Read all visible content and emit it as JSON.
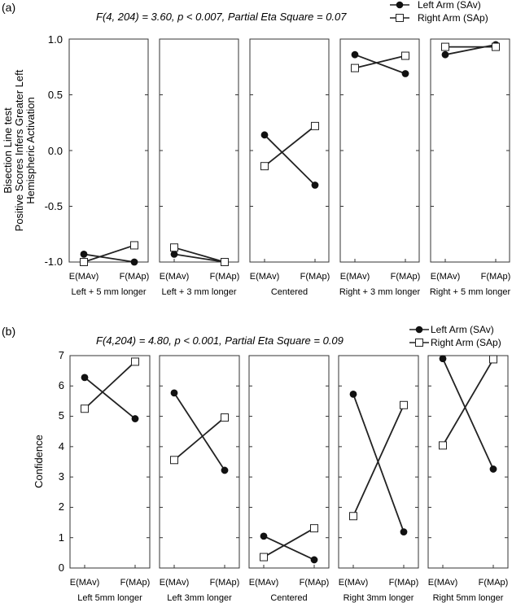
{
  "chart_data": [
    {
      "type": "line",
      "panel_label": "(a)",
      "title": "F(4, 204) = 3.60, p < 0.007, Partial Eta Square = 0.07",
      "ylabel_lines": [
        "Bisection Line test",
        "Positive Scores Infers Greater Left",
        "Hemispheric Activation"
      ],
      "ylim": [
        -1.0,
        1.0
      ],
      "yticks": [
        "1.0",
        "0.5",
        "0.0",
        "-0.5",
        "-1.0"
      ],
      "ytick_values": [
        1.0,
        0.5,
        0.0,
        -0.5,
        -1.0
      ],
      "x_tick_labels": [
        "E(MAv)",
        "F(MAp)"
      ],
      "legend": [
        {
          "name": "Left Arm (SAv)",
          "marker": "filled-circle"
        },
        {
          "name": "Right Arm (SAp)",
          "marker": "open-square"
        }
      ],
      "legend_position": "top-right",
      "panels": [
        {
          "xlabel": "Left + 5 mm longer",
          "series": [
            {
              "name": "Left Arm (SAv)",
              "values": [
                -0.93,
                -1.0
              ]
            },
            {
              "name": "Right Arm (SAp)",
              "values": [
                -1.0,
                -0.85
              ]
            }
          ]
        },
        {
          "xlabel": "Left + 3 mm longer",
          "series": [
            {
              "name": "Left Arm (SAv)",
              "values": [
                -0.93,
                -1.0
              ]
            },
            {
              "name": "Right Arm (SAp)",
              "values": [
                -0.87,
                -1.0
              ]
            }
          ]
        },
        {
          "xlabel": "Centered",
          "series": [
            {
              "name": "Left Arm (SAv)",
              "values": [
                0.14,
                -0.31
              ]
            },
            {
              "name": "Right Arm (SAp)",
              "values": [
                -0.14,
                0.22
              ]
            }
          ]
        },
        {
          "xlabel": "Right + 3 mm longer",
          "series": [
            {
              "name": "Left Arm (SAv)",
              "values": [
                0.86,
                0.69
              ]
            },
            {
              "name": "Right Arm (SAp)",
              "values": [
                0.74,
                0.85
              ]
            }
          ]
        },
        {
          "xlabel": "Right + 5 mm longer",
          "series": [
            {
              "name": "Left Arm (SAv)",
              "values": [
                0.86,
                0.95
              ]
            },
            {
              "name": "Right Arm (SAp)",
              "values": [
                0.93,
                0.93
              ]
            }
          ]
        }
      ]
    },
    {
      "type": "line",
      "panel_label": "(b)",
      "title": "F(4,204) = 4.80, p < 0.001, Partial Eta Square = 0.09",
      "ylabel_lines": [
        "Confidence"
      ],
      "ylim": [
        0,
        7
      ],
      "yticks": [
        "7",
        "6",
        "5",
        "4",
        "3",
        "2",
        "1",
        "0"
      ],
      "ytick_values": [
        7,
        6,
        5,
        4,
        3,
        2,
        1,
        0
      ],
      "x_tick_labels": [
        "E(MAv)",
        "F(MAp)"
      ],
      "legend": [
        {
          "name": "Left Arm (SAv)",
          "marker": "filled-circle"
        },
        {
          "name": "Right Arm (SAp)",
          "marker": "open-square"
        }
      ],
      "legend_position": "top-right",
      "panels": [
        {
          "xlabel": "Left 5mm longer",
          "series": [
            {
              "name": "Left Arm (SAv)",
              "values": [
                6.28,
                4.92
              ]
            },
            {
              "name": "Right Arm (SAp)",
              "values": [
                5.25,
                6.8
              ]
            }
          ]
        },
        {
          "xlabel": "Left 3mm longer",
          "series": [
            {
              "name": "Left Arm (SAv)",
              "values": [
                5.77,
                3.22
              ]
            },
            {
              "name": "Right Arm (SAp)",
              "values": [
                3.56,
                4.96
              ]
            }
          ]
        },
        {
          "xlabel": "Centered",
          "series": [
            {
              "name": "Left Arm (SAv)",
              "values": [
                1.05,
                0.27
              ]
            },
            {
              "name": "Right Arm (SAp)",
              "values": [
                0.36,
                1.31
              ]
            }
          ]
        },
        {
          "xlabel": "Right 3mm longer",
          "series": [
            {
              "name": "Left Arm (SAv)",
              "values": [
                5.73,
                1.19
              ]
            },
            {
              "name": "Right Arm (SAp)",
              "values": [
                1.71,
                5.37
              ]
            }
          ]
        },
        {
          "xlabel": "Right 5mm longer",
          "series": [
            {
              "name": "Left Arm (SAv)",
              "values": [
                6.9,
                3.26
              ]
            },
            {
              "name": "Right Arm (SAp)",
              "values": [
                4.04,
                6.88
              ]
            }
          ]
        }
      ]
    }
  ],
  "colors": {
    "line": "#222222",
    "marker_fill": "#111111",
    "square_fill": "#ffffff",
    "frame": "#333333"
  }
}
